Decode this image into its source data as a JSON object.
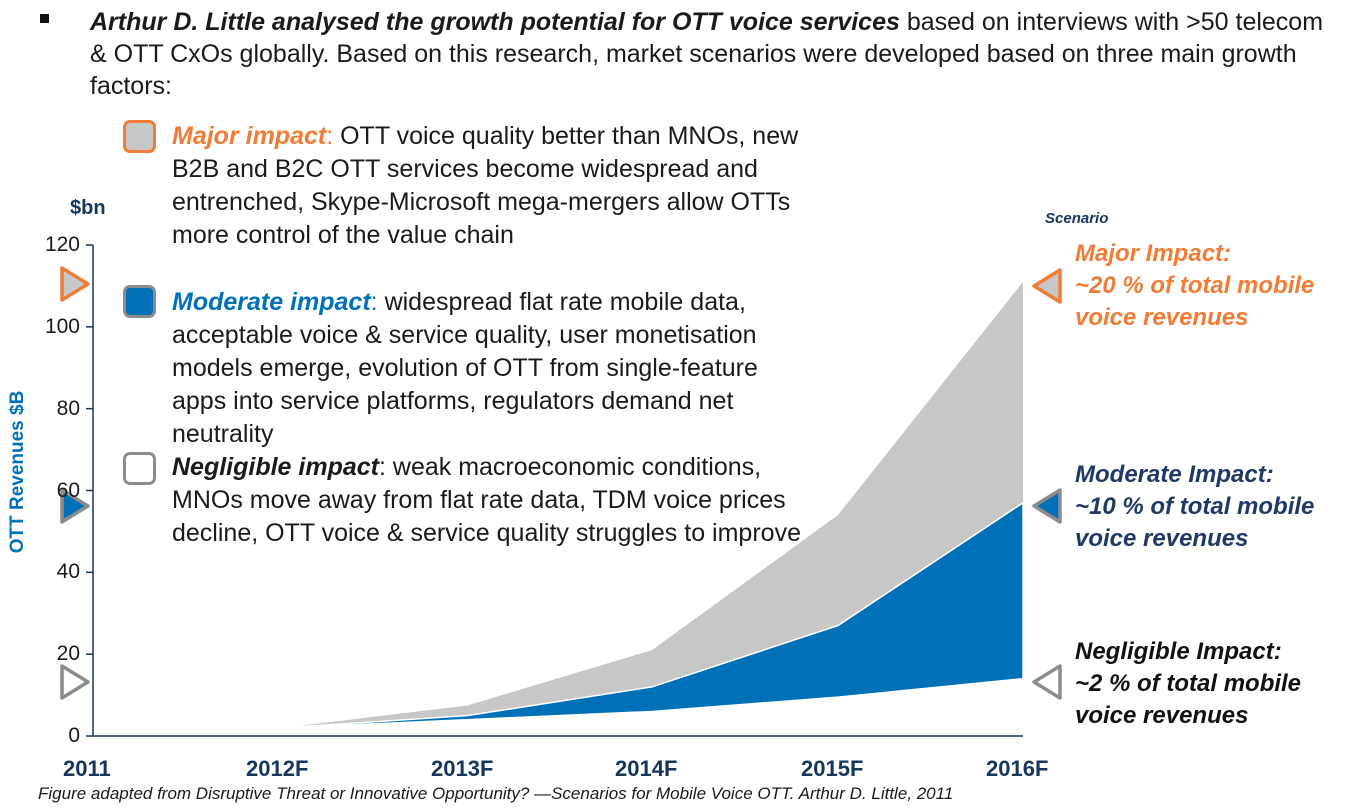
{
  "intro": {
    "bold_text": "Arthur D. Little analysed the growth potential for OTT voice services",
    "rest_text": " based on interviews with >50 telecom & OTT CxOs globally. Based on this research, market scenarios were developed based on three main growth factors:"
  },
  "legend": [
    {
      "label": "Major impact",
      "sep": ":",
      "text": " OTT voice quality better than MNOs, new B2B and B2C OTT services become widespread and entrenched, Skype-Microsoft mega-mergers allow OTTs more control of the value chain",
      "color": "#f07c35"
    },
    {
      "label": "Moderate impact",
      "sep": ":",
      "text": " widespread flat rate mobile data, acceptable voice & service quality, user monetisation models emerge, evolution of OTT from single-feature apps into service platforms, regulators demand net neutrality",
      "color": "#0070b8"
    },
    {
      "label": "Negligible impact",
      "sep": ":",
      "text": " weak macroeconomic conditions, MNOs move away from flat rate data, TDM voice prices decline, OTT voice & service quality struggles to improve",
      "color": "#111111"
    }
  ],
  "scenarios": [
    {
      "line1": "Major Impact:",
      "line2": "~20 % of total mobile",
      "line3": "voice revenues",
      "color": "#f07c35"
    },
    {
      "line1": "Moderate Impact:",
      "line2": "~10 % of total mobile",
      "line3": "voice revenues",
      "color": "#1f3864"
    },
    {
      "line1": "Negligible Impact:",
      "line2": "~2 % of total mobile",
      "line3": "voice revenues",
      "color": "#111111"
    }
  ],
  "caption": "Figure adapted from Disruptive Threat or Innovative Opportunity? —Scenarios for Mobile Voice OTT. Arthur D. Little, 2011",
  "chart_data": {
    "type": "area",
    "unit_label": "$bn",
    "ylabel": "OTT Revenues $B",
    "legend_title": "Scenario",
    "ylim": [
      0,
      120
    ],
    "yticks": [
      0,
      20,
      40,
      60,
      80,
      100,
      120
    ],
    "categories": [
      "2011",
      "2012F",
      "2013F",
      "2014F",
      "2015F",
      "2016F"
    ],
    "series": [
      {
        "name": "Major Impact",
        "values": [
          null,
          2,
          7.5,
          21,
          54,
          111
        ],
        "color": "#c7c7c7"
      },
      {
        "name": "Moderate Impact",
        "values": [
          null,
          2,
          5,
          12,
          27,
          57
        ],
        "color": "#0070b8"
      },
      {
        "name": "Negligible Impact",
        "values": [
          null,
          2,
          4,
          6,
          9.5,
          14
        ],
        "color": "#ffffff"
      }
    ],
    "grid": false
  }
}
